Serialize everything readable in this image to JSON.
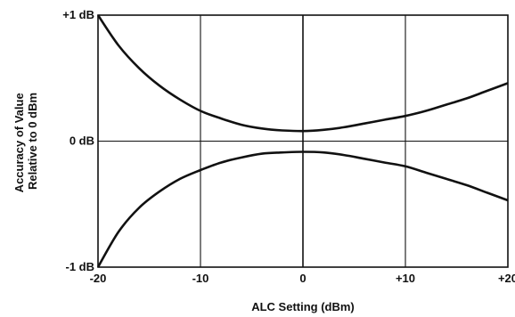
{
  "chart_data": {
    "type": "line",
    "title": "",
    "xlabel": "ALC Setting (dBm)",
    "ylabel_lines": [
      "Accuracy of Value",
      "Relative to 0 dBm"
    ],
    "xlim": [
      -20,
      20
    ],
    "ylim": [
      -1,
      1
    ],
    "x_ticks": [
      {
        "value": -20,
        "label": "-20"
      },
      {
        "value": -10,
        "label": "-10"
      },
      {
        "value": 0,
        "label": "0"
      },
      {
        "value": 10,
        "label": "+10"
      },
      {
        "value": 20,
        "label": "+20"
      }
    ],
    "y_ticks": [
      {
        "value": 1,
        "label": "+1 dB"
      },
      {
        "value": 0,
        "label": "0 dB"
      },
      {
        "value": -1,
        "label": "-1 dB"
      }
    ],
    "grid": true,
    "series": [
      {
        "x": [
          -20,
          -18,
          -16,
          -14,
          -12,
          -10,
          -8,
          -6,
          -4,
          -2,
          0,
          2,
          4,
          6,
          8,
          10,
          12,
          14,
          16,
          18,
          20
        ],
        "values": [
          1.0,
          0.76,
          0.58,
          0.44,
          0.33,
          0.24,
          0.18,
          0.13,
          0.1,
          0.085,
          0.08,
          0.09,
          0.11,
          0.14,
          0.17,
          0.2,
          0.24,
          0.29,
          0.34,
          0.4,
          0.46
        ]
      },
      {
        "x": [
          -20,
          -18,
          -16,
          -14,
          -12,
          -10,
          -8,
          -6,
          -4,
          -2,
          0,
          2,
          4,
          6,
          8,
          10,
          12,
          14,
          16,
          18,
          20
        ],
        "values": [
          -1.0,
          -0.72,
          -0.53,
          -0.4,
          -0.3,
          -0.23,
          -0.17,
          -0.13,
          -0.1,
          -0.09,
          -0.085,
          -0.09,
          -0.11,
          -0.14,
          -0.17,
          -0.2,
          -0.25,
          -0.3,
          -0.35,
          -0.41,
          -0.47
        ]
      }
    ]
  }
}
